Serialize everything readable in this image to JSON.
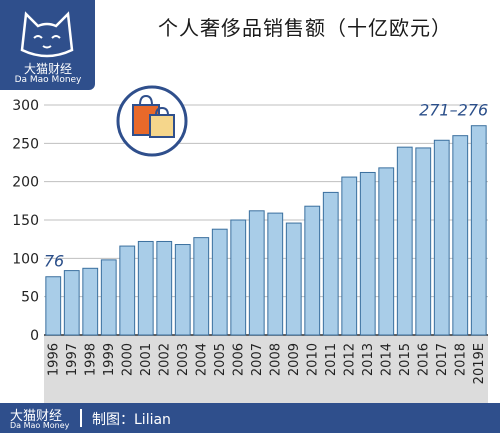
{
  "logo": {
    "cn": "大猫财经",
    "en": "Da Mao Money"
  },
  "title": "个人奢侈品销售额（十亿欧元）",
  "footer": {
    "brand_cn": "大猫财经",
    "brand_en": "Da Mao Money",
    "credit": "制图：Lilian"
  },
  "colors": {
    "bar_fill": "#a9cde8",
    "bar_stroke": "#3a6f9e",
    "brand_blue": "#2f4f8c",
    "label_blue": "#2b4f8a"
  },
  "icon": "shopping-bags-icon",
  "chart_data": {
    "type": "bar",
    "title": "个人奢侈品销售额（十亿欧元）",
    "categories": [
      "1996",
      "1997",
      "1998",
      "1999",
      "2000",
      "2001",
      "2002",
      "2003",
      "2004",
      "2005",
      "2006",
      "2007",
      "2008",
      "2009",
      "2010",
      "2011",
      "2012",
      "2013",
      "2014",
      "2015",
      "2016",
      "2017",
      "2018",
      "2019E"
    ],
    "values": [
      76,
      84,
      87,
      98,
      116,
      122,
      122,
      118,
      127,
      138,
      150,
      162,
      159,
      146,
      168,
      186,
      206,
      212,
      218,
      245,
      244,
      254,
      260,
      273
    ],
    "ylim": [
      0,
      300
    ],
    "yticks": [
      0,
      50,
      100,
      150,
      200,
      250,
      300
    ],
    "annotations": [
      {
        "label": "76",
        "category": "1996"
      },
      {
        "label": "271–276",
        "category": "2019E"
      }
    ],
    "grid": true
  }
}
